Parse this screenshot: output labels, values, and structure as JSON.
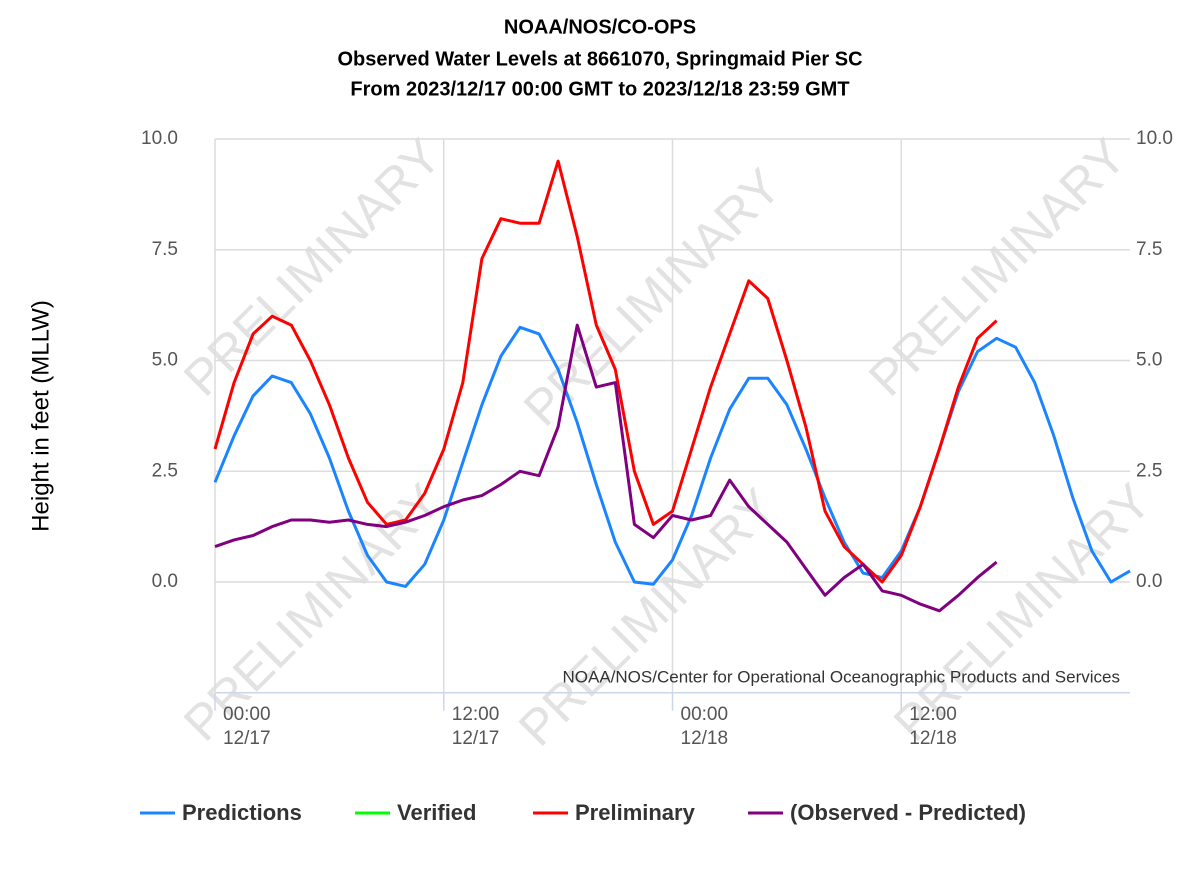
{
  "chart_data": {
    "type": "line",
    "title": [
      "NOAA/NOS/CO-OPS",
      "Observed Water Levels at 8661070, Springmaid Pier SC",
      "From 2023/12/17 00:00 GMT to 2023/12/18 23:59 GMT"
    ],
    "ylabel": "Height in feet (MLLW)",
    "credit": "NOAA/NOS/Center for Operational Oceanographic Products and Services",
    "watermark": "PRELIMINARY",
    "x": [
      0,
      1,
      2,
      3,
      4,
      5,
      6,
      7,
      8,
      9,
      10,
      11,
      12,
      13,
      14,
      15,
      16,
      17,
      18,
      19,
      20,
      21,
      22,
      23,
      24,
      25,
      26,
      27,
      28,
      29,
      30,
      31,
      32,
      33,
      34,
      35,
      36,
      37,
      38,
      39,
      40,
      41,
      42,
      43,
      44,
      45,
      46,
      47,
      48
    ],
    "xlim": [
      0,
      48
    ],
    "xticks": [
      {
        "value": 0,
        "label": "00:00\n12/17"
      },
      {
        "value": 12,
        "label": "12:00\n12/17"
      },
      {
        "value": 24,
        "label": "00:00\n12/18"
      },
      {
        "value": 36,
        "label": "12:00\n12/18"
      }
    ],
    "ylim": [
      -2.5,
      10
    ],
    "yticks": [
      {
        "value": 0,
        "label": "0.0"
      },
      {
        "value": 2.5,
        "label": "2.5"
      },
      {
        "value": 5,
        "label": "5.0"
      },
      {
        "value": 7.5,
        "label": "7.5"
      },
      {
        "value": 10,
        "label": "10.0"
      }
    ],
    "y2lim": [
      -2.5,
      10
    ],
    "y2ticks": [
      {
        "value": 0,
        "label": "0.0"
      },
      {
        "value": 2.5,
        "label": "2.5"
      },
      {
        "value": 5,
        "label": "5.0"
      },
      {
        "value": 7.5,
        "label": "7.5"
      },
      {
        "value": 10,
        "label": "10.0"
      }
    ],
    "grid": true,
    "series": [
      {
        "name": "Predictions",
        "color": "#1a85ff",
        "values": [
          2.25,
          3.3,
          4.2,
          4.65,
          4.5,
          3.8,
          2.8,
          1.6,
          0.6,
          0.0,
          -0.1,
          0.4,
          1.4,
          2.7,
          4.0,
          5.1,
          5.75,
          5.6,
          4.8,
          3.6,
          2.2,
          0.9,
          0.0,
          -0.05,
          0.5,
          1.5,
          2.8,
          3.9,
          4.6,
          4.6,
          4.0,
          3.0,
          1.9,
          0.9,
          0.2,
          0.1,
          0.7,
          1.7,
          3.0,
          4.3,
          5.2,
          5.5,
          5.3,
          4.5,
          3.3,
          1.9,
          0.7,
          0.0,
          0.25
        ]
      },
      {
        "name": "Verified",
        "color": "#00ff00",
        "values": [
          null,
          null,
          null,
          null,
          null,
          null,
          null,
          null,
          null,
          null,
          null,
          null,
          null,
          null,
          null,
          null,
          null,
          null,
          null,
          null,
          null,
          null,
          null,
          null,
          null,
          null,
          null,
          null,
          null,
          null,
          null,
          null,
          null,
          null,
          null,
          null,
          null,
          null,
          null,
          null,
          null,
          null,
          null,
          null,
          null,
          null,
          null,
          null,
          null
        ]
      },
      {
        "name": "Preliminary",
        "color": "#ff0000",
        "values": [
          3.0,
          4.5,
          5.6,
          6.0,
          5.8,
          5.0,
          4.0,
          2.8,
          1.8,
          1.3,
          1.4,
          2.0,
          3.0,
          4.5,
          7.3,
          8.2,
          8.1,
          8.1,
          9.5,
          7.8,
          5.8,
          4.8,
          2.5,
          1.3,
          1.6,
          3.0,
          4.4,
          5.6,
          6.8,
          6.4,
          5.0,
          3.5,
          1.6,
          0.8,
          0.4,
          0.0,
          0.6,
          1.7,
          3.0,
          4.4,
          5.5,
          5.9,
          null,
          null,
          null,
          null,
          null,
          null,
          null
        ]
      },
      {
        "name": "(Observed - Predicted)",
        "color": "#800080",
        "values": [
          0.8,
          0.95,
          1.05,
          1.25,
          1.4,
          1.4,
          1.35,
          1.4,
          1.3,
          1.25,
          1.35,
          1.5,
          1.7,
          1.85,
          1.95,
          2.2,
          2.5,
          2.4,
          3.5,
          5.8,
          4.4,
          4.5,
          1.3,
          1.0,
          1.5,
          1.4,
          1.5,
          2.3,
          1.7,
          1.3,
          0.9,
          0.3,
          -0.3,
          0.1,
          0.4,
          -0.2,
          -0.3,
          -0.5,
          -0.65,
          -0.3,
          0.1,
          0.45,
          null,
          null,
          null,
          null,
          null,
          null,
          null
        ]
      }
    ]
  }
}
